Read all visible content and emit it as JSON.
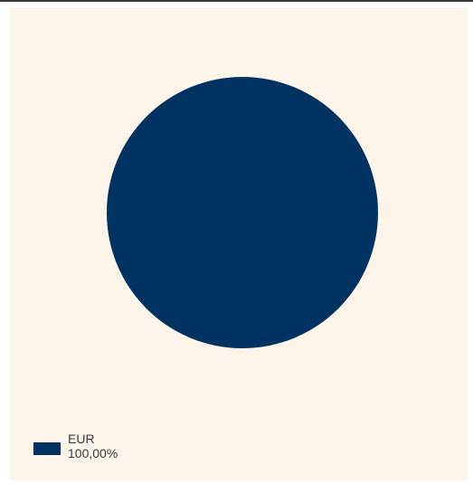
{
  "chart_data": {
    "type": "pie",
    "categories": [
      "EUR"
    ],
    "values": [
      100.0
    ],
    "colors": [
      "#003262"
    ],
    "legend_position": "bottom-left",
    "legend": [
      {
        "label": "EUR",
        "value_label": "100,00%"
      }
    ]
  },
  "colors": {
    "background": "#fdf5ea",
    "slice": "#003262",
    "text": "#3a3a3a"
  }
}
